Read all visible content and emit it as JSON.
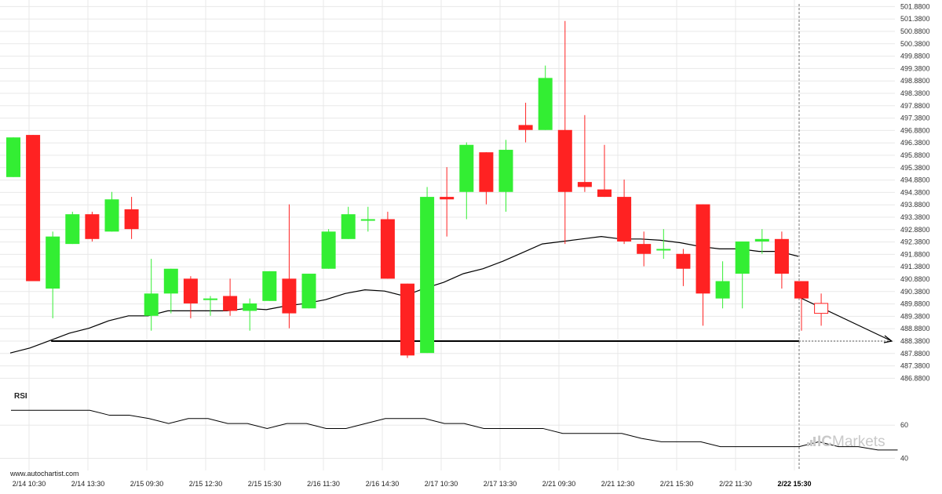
{
  "colors": {
    "bullish": "#33ee33",
    "bearish": "#ff2222",
    "ma_line": "#000000",
    "support_line": "#000000",
    "grid": "#e8e8e8",
    "rsi_line": "#000000"
  },
  "watermark": {
    "site": "www.autochartist.com",
    "brand_prefix": "IC",
    "brand_suffix": "Markets",
    "logo_icon": "bar-chart-logo-icon"
  },
  "chart_data": [
    {
      "type": "candlestick",
      "title": "",
      "y_axis_side": "right",
      "ylim": [
        486.3,
        502.2
      ],
      "y_ticks": [
        "501.8800",
        "501.3800",
        "500.8800",
        "500.3800",
        "499.8800",
        "499.3800",
        "498.8800",
        "498.3800",
        "497.8800",
        "497.3800",
        "496.8800",
        "496.3800",
        "495.8800",
        "495.3800",
        "494.8800",
        "494.3800",
        "493.8800",
        "493.3800",
        "492.8800",
        "492.3800",
        "491.8800",
        "491.3800",
        "490.8800",
        "490.3800",
        "489.8800",
        "489.3800",
        "488.8800",
        "488.3800",
        "487.8800",
        "487.3800",
        "486.8800"
      ],
      "x_labels": [
        "2/14 10:30",
        "2/14 13:30",
        "2/15 09:30",
        "2/15 12:30",
        "2/15 15:30",
        "2/16 11:30",
        "2/16 14:30",
        "2/17 10:30",
        "2/17 13:30",
        "2/21 09:30",
        "2/21 12:30",
        "2/21 15:30",
        "2/22 11:30",
        "2/22 15:30"
      ],
      "x_label_highlight": "2/22 15:30",
      "candles": [
        {
          "o": 495.0,
          "h": 496.6,
          "l": 495.0,
          "c": 496.6
        },
        {
          "o": 496.7,
          "h": 496.7,
          "l": 490.8,
          "c": 490.8
        },
        {
          "o": 490.5,
          "h": 492.8,
          "l": 489.3,
          "c": 492.6
        },
        {
          "o": 492.3,
          "h": 493.6,
          "l": 492.3,
          "c": 493.5
        },
        {
          "o": 493.5,
          "h": 493.6,
          "l": 492.4,
          "c": 492.5
        },
        {
          "o": 492.8,
          "h": 494.4,
          "l": 492.8,
          "c": 494.1
        },
        {
          "o": 493.7,
          "h": 494.2,
          "l": 492.5,
          "c": 492.9
        },
        {
          "o": 489.4,
          "h": 491.7,
          "l": 488.8,
          "c": 490.3
        },
        {
          "o": 490.3,
          "h": 491.3,
          "l": 489.5,
          "c": 491.3
        },
        {
          "o": 490.9,
          "h": 491.0,
          "l": 489.3,
          "c": 489.9
        },
        {
          "o": 490.1,
          "h": 490.2,
          "l": 489.4,
          "c": 490.1
        },
        {
          "o": 490.2,
          "h": 490.9,
          "l": 489.4,
          "c": 489.6
        },
        {
          "o": 489.6,
          "h": 490.1,
          "l": 488.8,
          "c": 489.9
        },
        {
          "o": 490.0,
          "h": 491.2,
          "l": 490.0,
          "c": 491.2
        },
        {
          "o": 490.9,
          "h": 493.9,
          "l": 488.9,
          "c": 489.5
        },
        {
          "o": 489.7,
          "h": 491.1,
          "l": 489.7,
          "c": 491.1
        },
        {
          "o": 491.3,
          "h": 492.9,
          "l": 491.3,
          "c": 492.8
        },
        {
          "o": 492.5,
          "h": 493.8,
          "l": 492.5,
          "c": 493.5
        },
        {
          "o": 493.3,
          "h": 493.8,
          "l": 492.8,
          "c": 493.3
        },
        {
          "o": 493.3,
          "h": 493.6,
          "l": 490.9,
          "c": 490.9
        },
        {
          "o": 490.7,
          "h": 490.7,
          "l": 487.7,
          "c": 487.8
        },
        {
          "o": 487.9,
          "h": 494.6,
          "l": 487.9,
          "c": 494.2
        },
        {
          "o": 494.2,
          "h": 495.4,
          "l": 492.6,
          "c": 494.1
        },
        {
          "o": 494.4,
          "h": 496.4,
          "l": 493.3,
          "c": 496.3
        },
        {
          "o": 496.0,
          "h": 496.0,
          "l": 493.9,
          "c": 494.4
        },
        {
          "o": 494.4,
          "h": 496.5,
          "l": 493.6,
          "c": 496.1
        },
        {
          "o": 497.1,
          "h": 498.0,
          "l": 496.4,
          "c": 496.9
        },
        {
          "o": 496.9,
          "h": 499.5,
          "l": 496.9,
          "c": 499.0
        },
        {
          "o": 496.9,
          "h": 501.3,
          "l": 492.3,
          "c": 494.4
        },
        {
          "o": 494.8,
          "h": 497.5,
          "l": 494.4,
          "c": 494.6
        },
        {
          "o": 494.5,
          "h": 496.3,
          "l": 494.2,
          "c": 494.2
        },
        {
          "o": 494.2,
          "h": 494.9,
          "l": 492.3,
          "c": 492.4
        },
        {
          "o": 492.3,
          "h": 492.8,
          "l": 491.4,
          "c": 491.9
        },
        {
          "o": 492.1,
          "h": 492.9,
          "l": 491.7,
          "c": 492.1
        },
        {
          "o": 491.9,
          "h": 492.1,
          "l": 490.6,
          "c": 491.3
        },
        {
          "o": 493.9,
          "h": 493.9,
          "l": 489.0,
          "c": 490.3
        },
        {
          "o": 490.1,
          "h": 491.6,
          "l": 489.7,
          "c": 490.8
        },
        {
          "o": 491.1,
          "h": 492.4,
          "l": 489.7,
          "c": 492.4
        },
        {
          "o": 492.4,
          "h": 492.9,
          "l": 491.9,
          "c": 492.5
        },
        {
          "o": 492.5,
          "h": 492.8,
          "l": 490.5,
          "c": 491.1
        },
        {
          "o": 490.8,
          "h": 490.8,
          "l": 488.8,
          "c": 490.1
        },
        {
          "o": 489.9,
          "h": 490.3,
          "l": 489.0,
          "c": 489.5
        }
      ],
      "moving_average": [
        487.9,
        488.1,
        488.4,
        488.7,
        488.9,
        489.2,
        489.4,
        489.4,
        489.6,
        489.6,
        489.6,
        489.6,
        489.7,
        489.65,
        489.8,
        489.9,
        490.05,
        490.3,
        490.45,
        490.4,
        490.2,
        490.5,
        490.75,
        491.1,
        491.3,
        491.6,
        491.95,
        492.3,
        492.4,
        492.5,
        492.6,
        492.5,
        492.5,
        492.45,
        492.35,
        492.2,
        492.1,
        492.1,
        492.0,
        492.0,
        491.8
      ],
      "ma_projection_to": 488.38,
      "support_level": 488.38,
      "support_start_index": 2,
      "support_end_index": 40,
      "forecast_index": 40,
      "forecast_extend_to": 45
    },
    {
      "type": "line",
      "title": "RSI",
      "y_ticks": [
        "60",
        "40"
      ],
      "ylim": [
        35,
        80
      ],
      "values": [
        69,
        69,
        69,
        69,
        69,
        66,
        66,
        64,
        61,
        64,
        64,
        61,
        61,
        58,
        61,
        61,
        58,
        58,
        61,
        64,
        64,
        64,
        61,
        61,
        58,
        58,
        58,
        58,
        55,
        55,
        55,
        55,
        52,
        50,
        50,
        50,
        47,
        47,
        47,
        47,
        47,
        50,
        47,
        47,
        45,
        45
      ]
    }
  ]
}
